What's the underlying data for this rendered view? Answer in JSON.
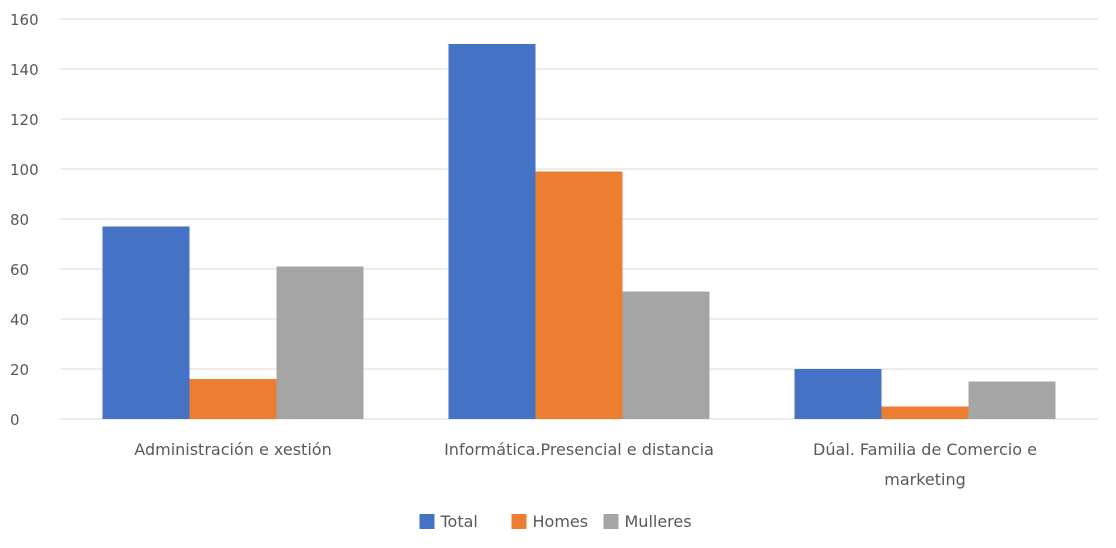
{
  "chart_data": {
    "type": "bar",
    "categories": [
      [
        "Administración e xestión"
      ],
      [
        "Informática.Presencial e distancia"
      ],
      [
        "Dúal. Familia de Comercio e",
        "marketing"
      ]
    ],
    "series": [
      {
        "name": "Total",
        "color": "#4472C4",
        "values": [
          77,
          150,
          20
        ]
      },
      {
        "name": "Homes",
        "color": "#ED7D31",
        "values": [
          16,
          99,
          5
        ]
      },
      {
        "name": "Mulleres",
        "color": "#A5A5A5",
        "values": [
          61,
          51,
          15
        ]
      }
    ],
    "y_ticks": [
      "0",
      "20",
      "40",
      "60",
      "80",
      "100",
      "120",
      "140",
      "160"
    ],
    "ylim": [
      0,
      160
    ],
    "grid": true,
    "legend_position": "bottom-center"
  }
}
